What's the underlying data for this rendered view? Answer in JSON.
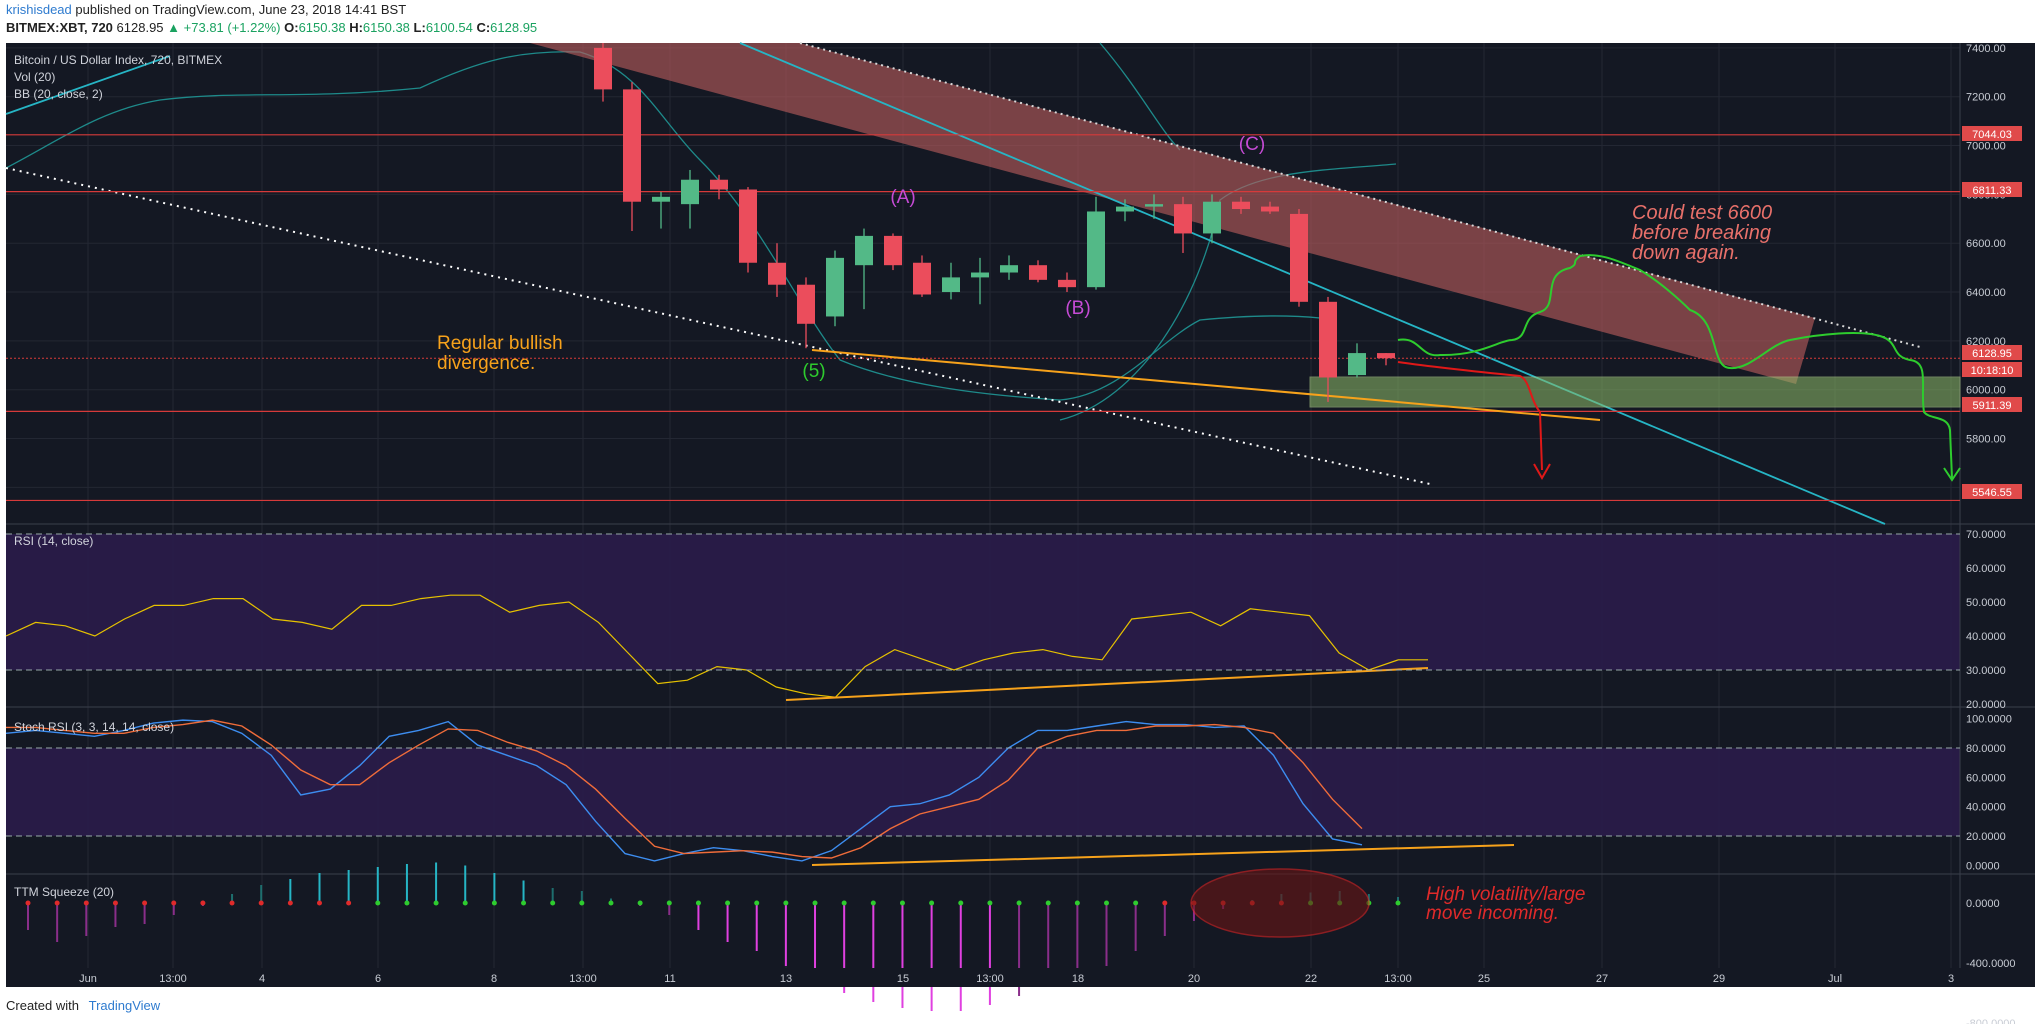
{
  "header": {
    "author": "krishisdead",
    "published": "published on TradingView.com, June 23, 2018 14:41 BST",
    "symbol": "BITMEX:XBT, 720",
    "last": "6128.95",
    "change": "▲ +73.81 (+1.22%)",
    "o_label": "O:",
    "o": "6150.38",
    "h_label": "H:",
    "h": "6150.38",
    "l_label": "L:",
    "l": "6100.54",
    "c_label": "C:",
    "c": "6128.95"
  },
  "footer": {
    "created_with": "Created with",
    "brand": "TradingView"
  },
  "colors": {
    "bg": "#141823",
    "up": "#53b987",
    "down": "#eb4d5c",
    "grid": "#2a2e39",
    "price_line": "#f23645",
    "orange": "#f7a21b",
    "green_path": "#2ecc2e",
    "cyan": "#26b5c5",
    "pink": "#d455d4",
    "rsi_band": "#2f1f50"
  },
  "chart_data": [
    {
      "type": "candlestick",
      "title": "Bitcoin / US Dollar Index, 720, BITMEX",
      "indicators": [
        "Vol (20)",
        "BB (20, close, 2)"
      ],
      "x_ticks": [
        "Jun",
        "13:00",
        "4",
        "6",
        "8",
        "13:00",
        "11",
        "13",
        "15",
        "13:00",
        "18",
        "20",
        "22",
        "13:00",
        "25",
        "27",
        "29",
        "Jul",
        "3"
      ],
      "ylim": [
        5450,
        7420
      ],
      "y_ticks": [
        5600,
        5800,
        6000,
        6200,
        6400,
        6600,
        6800,
        7000,
        7200,
        7400
      ],
      "candles": [
        {
          "o": 7400,
          "h": 7420,
          "l": 7180,
          "c": 7230
        },
        {
          "o": 7230,
          "h": 7260,
          "l": 6650,
          "c": 6770
        },
        {
          "o": 6770,
          "h": 6810,
          "l": 6660,
          "c": 6790
        },
        {
          "o": 6760,
          "h": 6900,
          "l": 6660,
          "c": 6860
        },
        {
          "o": 6860,
          "h": 6880,
          "l": 6780,
          "c": 6820
        },
        {
          "o": 6820,
          "h": 6830,
          "l": 6480,
          "c": 6520
        },
        {
          "o": 6520,
          "h": 6600,
          "l": 6380,
          "c": 6430
        },
        {
          "o": 6430,
          "h": 6460,
          "l": 6170,
          "c": 6270
        },
        {
          "o": 6300,
          "h": 6570,
          "l": 6260,
          "c": 6540
        },
        {
          "o": 6510,
          "h": 6660,
          "l": 6330,
          "c": 6630
        },
        {
          "o": 6630,
          "h": 6640,
          "l": 6490,
          "c": 6510
        },
        {
          "o": 6520,
          "h": 6550,
          "l": 6380,
          "c": 6390
        },
        {
          "o": 6400,
          "h": 6520,
          "l": 6370,
          "c": 6460
        },
        {
          "o": 6460,
          "h": 6540,
          "l": 6350,
          "c": 6480
        },
        {
          "o": 6480,
          "h": 6550,
          "l": 6450,
          "c": 6510
        },
        {
          "o": 6510,
          "h": 6530,
          "l": 6440,
          "c": 6450
        },
        {
          "o": 6450,
          "h": 6480,
          "l": 6400,
          "c": 6420
        },
        {
          "o": 6420,
          "h": 6790,
          "l": 6410,
          "c": 6730
        },
        {
          "o": 6730,
          "h": 6780,
          "l": 6690,
          "c": 6750
        },
        {
          "o": 6750,
          "h": 6800,
          "l": 6700,
          "c": 6760
        },
        {
          "o": 6760,
          "h": 6790,
          "l": 6560,
          "c": 6640
        },
        {
          "o": 6640,
          "h": 6800,
          "l": 6600,
          "c": 6770
        },
        {
          "o": 6770,
          "h": 6790,
          "l": 6720,
          "c": 6740
        },
        {
          "o": 6750,
          "h": 6770,
          "l": 6720,
          "c": 6730
        },
        {
          "o": 6720,
          "h": 6740,
          "l": 6340,
          "c": 6360
        },
        {
          "o": 6360,
          "h": 6380,
          "l": 5950,
          "c": 6050
        },
        {
          "o": 6060,
          "h": 6190,
          "l": 6050,
          "c": 6150
        },
        {
          "o": 6150,
          "h": 6150,
          "l": 6100,
          "c": 6129
        }
      ],
      "price_levels": [
        7044.03,
        6811.33,
        5911.39,
        5546.55
      ],
      "current_price": 6128.95,
      "countdown": "10:18:10",
      "support_zone": [
        5910,
        6040
      ],
      "wave_labels": [
        "(A)",
        "(B)",
        "(C)",
        "(5)"
      ],
      "annotations": [
        "Regular bullish divergence.",
        "Could test 6600 before breaking down again."
      ]
    },
    {
      "type": "line",
      "title": "RSI (14, close)",
      "ylim": [
        18,
        72
      ],
      "y_ticks": [
        20,
        30,
        40,
        50,
        60,
        70
      ],
      "band": [
        30,
        70
      ],
      "values": [
        40,
        44,
        43,
        40,
        45,
        49,
        49,
        51,
        51,
        45,
        44,
        42,
        49,
        49,
        51,
        52,
        52,
        47,
        49,
        50,
        44,
        35,
        26,
        27,
        31,
        30,
        25,
        23,
        22,
        31,
        36,
        33,
        30,
        33,
        35,
        36,
        34,
        33,
        45,
        46,
        47,
        43,
        48,
        47,
        46,
        35,
        30,
        33,
        33
      ]
    },
    {
      "type": "line",
      "title": "Stoch RSI (3, 3, 14, 14, close)",
      "ylim": [
        -5,
        102
      ],
      "y_ticks": [
        0,
        20,
        40,
        60,
        80,
        100
      ],
      "band": [
        20,
        80
      ],
      "series": [
        {
          "values": [
            90,
            92,
            90,
            88,
            92,
            97,
            99,
            98,
            90,
            75,
            48,
            52,
            68,
            88,
            92,
            98,
            82,
            75,
            68,
            55,
            30,
            8,
            3,
            8,
            12,
            10,
            6,
            3,
            10,
            25,
            40,
            42,
            48,
            60,
            80,
            92,
            92,
            95,
            98,
            96,
            96,
            94,
            95,
            75,
            42,
            18,
            14
          ]
        },
        {
          "values": [
            94,
            94,
            92,
            90,
            90,
            94,
            96,
            99,
            95,
            82,
            65,
            55,
            55,
            70,
            82,
            93,
            92,
            84,
            78,
            68,
            52,
            32,
            13,
            8,
            9,
            10,
            9,
            6,
            5,
            12,
            25,
            35,
            40,
            45,
            58,
            80,
            88,
            92,
            92,
            95,
            95,
            96,
            94,
            90,
            70,
            45,
            25
          ]
        }
      ]
    },
    {
      "type": "bar",
      "title": "TTM Squeeze (20)",
      "ylim": [
        -840,
        120
      ],
      "y_ticks": [
        0,
        -400,
        -800
      ],
      "values": [
        -180,
        -260,
        -220,
        -160,
        -140,
        -80,
        -20,
        60,
        120,
        160,
        200,
        220,
        240,
        260,
        270,
        250,
        200,
        150,
        100,
        80,
        30,
        -20,
        -80,
        -180,
        -260,
        -320,
        -420,
        -520,
        -600,
        -660,
        -700,
        -720,
        -720,
        -680,
        -620,
        -560,
        -480,
        -420,
        -320,
        -220,
        -120,
        -40,
        20,
        60,
        70,
        80,
        60,
        40
      ]
    }
  ],
  "ttm_annotation": "High volatility/large move incoming.",
  "price_axis_tags": {
    "p7044": "7044.03",
    "p6811": "6811.33",
    "p6128": "6128.95",
    "countdown": "10:18:10",
    "p5911": "5911.39",
    "p5546": "5546.55"
  }
}
